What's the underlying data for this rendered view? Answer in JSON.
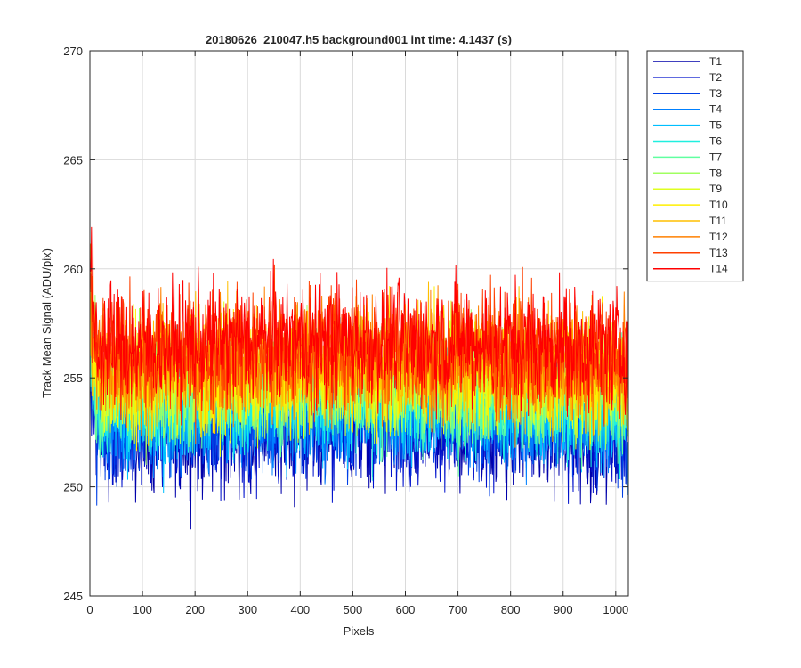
{
  "chart_data": {
    "type": "line",
    "title": "20180626_210047.h5  background001   int time: 4.1437 (s)",
    "xlabel": "Pixels",
    "ylabel": "Track Mean Signal (ADU/pix)",
    "xlim": [
      0,
      1024
    ],
    "ylim": [
      245,
      270
    ],
    "xticks": [
      0,
      100,
      200,
      300,
      400,
      500,
      600,
      700,
      800,
      900,
      1000
    ],
    "yticks": [
      245,
      250,
      255,
      260,
      265,
      270
    ],
    "grid": true,
    "legend_position": "outside-top-right",
    "series": [
      {
        "name": "T1",
        "color": "#0000AA",
        "mean": 252.6,
        "amp": 2.6
      },
      {
        "name": "T2",
        "color": "#0011CC",
        "mean": 252.9,
        "amp": 2.5
      },
      {
        "name": "T3",
        "color": "#0040E6",
        "mean": 253.2,
        "amp": 2.4
      },
      {
        "name": "T4",
        "color": "#0080FF",
        "mean": 253.5,
        "amp": 2.4
      },
      {
        "name": "T5",
        "color": "#00BFFF",
        "mean": 253.8,
        "amp": 2.4
      },
      {
        "name": "T6",
        "color": "#20EFDF",
        "mean": 254.1,
        "amp": 2.4
      },
      {
        "name": "T7",
        "color": "#60FFA0",
        "mean": 254.4,
        "amp": 2.4
      },
      {
        "name": "T8",
        "color": "#A0FF60",
        "mean": 254.7,
        "amp": 2.4
      },
      {
        "name": "T9",
        "color": "#DFFF20",
        "mean": 255.0,
        "amp": 2.4
      },
      {
        "name": "T10",
        "color": "#FFEF00",
        "mean": 255.3,
        "amp": 2.5
      },
      {
        "name": "T11",
        "color": "#FFBF00",
        "mean": 255.6,
        "amp": 2.5
      },
      {
        "name": "T12",
        "color": "#FF8000",
        "mean": 255.9,
        "amp": 2.5
      },
      {
        "name": "T13",
        "color": "#FF4000",
        "mean": 256.3,
        "amp": 2.5
      },
      {
        "name": "T14",
        "color": "#FF0000",
        "mean": 256.6,
        "amp": 2.6
      }
    ]
  }
}
